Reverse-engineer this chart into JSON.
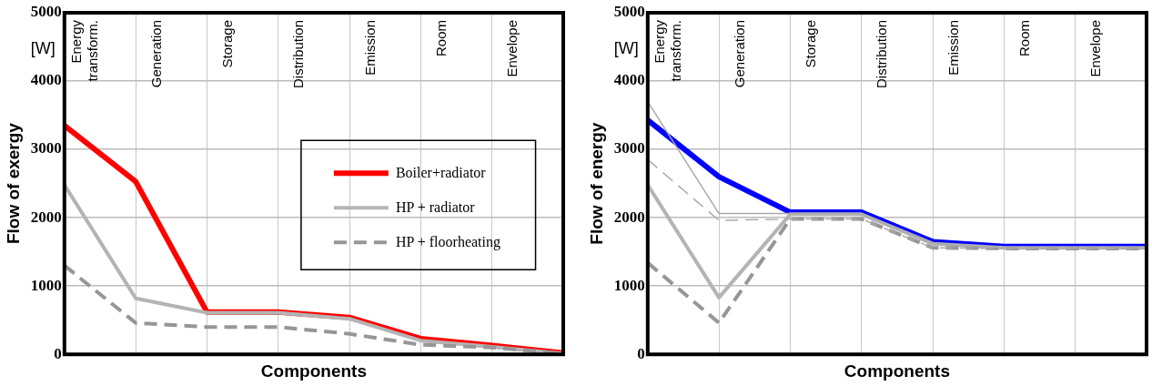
{
  "chart_data": [
    {
      "type": "line",
      "xlabel": "Components",
      "ylabel": "Flow of exergy",
      "annotations": [
        "[W]"
      ],
      "categories": [
        "Energy transform.",
        "Generation",
        "Storage",
        "Distribution",
        "Emission",
        "Room",
        "Envelope",
        null
      ],
      "ylim": [
        0,
        5000
      ],
      "yticks": [
        0,
        1000,
        2000,
        3000,
        4000,
        5000
      ],
      "grid": true,
      "legend": "right",
      "series": [
        {
          "name": "Boiler+radiator",
          "color": "#ff0000",
          "line_style": "solid",
          "values": [
            3350,
            2530,
            620,
            620,
            540,
            230,
            130,
            20
          ]
        },
        {
          "name": "HP + radiator",
          "color": "#b4b4b4",
          "line_style": "solid",
          "values": [
            2480,
            820,
            610,
            610,
            520,
            200,
            110,
            10
          ]
        },
        {
          "name": "HP + floorheating",
          "color": "#969696",
          "line_style": "dashed",
          "values": [
            1300,
            460,
            400,
            400,
            300,
            140,
            100,
            10
          ]
        }
      ]
    },
    {
      "type": "line",
      "xlabel": "Components",
      "ylabel": "Flow of energy",
      "annotations": [
        "[W]"
      ],
      "categories": [
        "Energy transform.",
        "Generation",
        "Storage",
        "Distribution",
        "Emission",
        "Room",
        "Envelope",
        null
      ],
      "ylim": [
        0,
        5000
      ],
      "yticks": [
        0,
        1000,
        2000,
        3000,
        4000,
        5000
      ],
      "grid": true,
      "series": [
        {
          "color": "#0000ff",
          "line_style": "solid",
          "values": [
            3430,
            2600,
            2080,
            2080,
            1650,
            1580,
            1580,
            1580
          ]
        },
        {
          "color": "#b4b4b4",
          "line_style": "solid",
          "values": [
            2480,
            830,
            2050,
            2050,
            1620,
            1560,
            1560,
            1560
          ]
        },
        {
          "color": "#969696",
          "line_style": "dashed",
          "values": [
            1340,
            460,
            1980,
            1980,
            1560,
            1550,
            1550,
            1550
          ]
        },
        {
          "color": "#aaaaaa",
          "line_style": "solid",
          "values": [
            3700,
            2060,
            2060,
            2060,
            1620,
            1560,
            1560,
            1560
          ]
        },
        {
          "color": "#aaaaaa",
          "line_style": "dashed",
          "values": [
            2850,
            1960,
            1980,
            1980,
            1560,
            1550,
            1550,
            1550
          ]
        }
      ]
    }
  ]
}
